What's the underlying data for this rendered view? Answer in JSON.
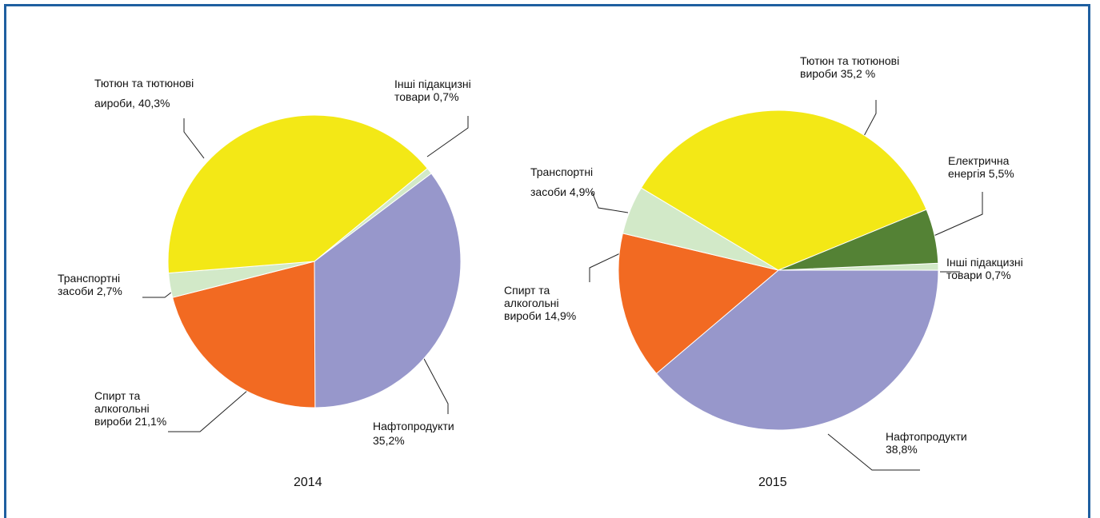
{
  "chart_data": [
    {
      "type": "pie",
      "title": "2014",
      "categories": [
        "Інші підакцизні товари",
        "Нафтопродукти",
        "Спирт та алкогольні вироби",
        "Транспортні засоби",
        "Тютюн та тютюнові аироби,"
      ],
      "values": [
        0.7,
        35.2,
        21.1,
        2.7,
        40.3
      ],
      "value_labels": [
        "0,7%",
        "35,2%",
        "21,1%",
        "2,7%",
        "40,3%"
      ],
      "colors": [
        "#d2e9c8",
        "#9797cb",
        "#f26a22",
        "#d2e9c8",
        "#f3e816"
      ]
    },
    {
      "type": "pie",
      "title": "2015",
      "categories": [
        "Інші підакцизні товари",
        "Нафтопродукти",
        "Спирт та алкогольні вироби",
        "Транспортні засоби",
        "Тютюн та тютюнові вироби",
        "Електрична енергія"
      ],
      "values": [
        0.7,
        38.8,
        14.9,
        4.9,
        35.2,
        5.5
      ],
      "value_labels": [
        "0,7%",
        "38,8%",
        "14,9%",
        "4,9%",
        "35,2 %",
        "5,5%"
      ],
      "colors": [
        "#d2e9c8",
        "#9797cb",
        "#f26a22",
        "#d2e9c8",
        "#f3e816",
        "#548235"
      ]
    }
  ]
}
